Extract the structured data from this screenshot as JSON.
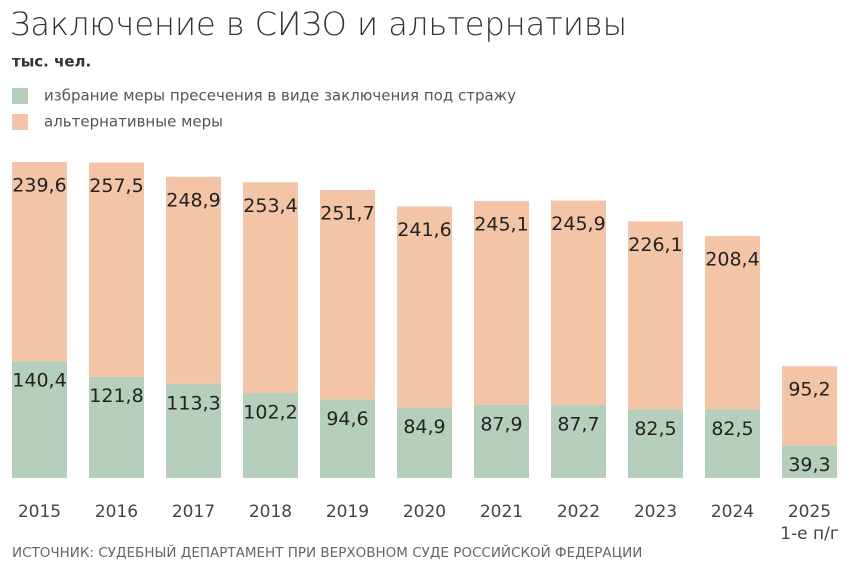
{
  "chart_data": {
    "type": "stacked_bar",
    "title": "Заключение в СИЗО и альтернативы",
    "subtitle": "тыс. чел.",
    "source": "ИСТОЧНИК: СУДЕБНЫЙ ДЕПАРТАМЕНТ ПРИ ВЕРХОВНОМ СУДЕ РОССИЙСКОЙ ФЕДЕРАЦИИ",
    "categories": [
      "2015",
      "2016",
      "2017",
      "2018",
      "2019",
      "2020",
      "2021",
      "2022",
      "2023",
      "2024",
      "2025\n1-е п/г"
    ],
    "series": [
      {
        "name": "избрание меры пресечения в виде заключения под стражу",
        "color": "#b5cfbc",
        "values": [
          140.4,
          121.8,
          113.3,
          102.2,
          94.6,
          84.9,
          87.9,
          87.7,
          82.5,
          82.5,
          39.3
        ],
        "value_labels": [
          "140,4",
          "121,8",
          "113,3",
          "102,2",
          "94,6",
          "84,9",
          "87,9",
          "87,7",
          "82,5",
          "82,5",
          "39,3"
        ]
      },
      {
        "name": "альтернативные меры",
        "color": "#f3c4a6",
        "values": [
          239.6,
          257.5,
          248.9,
          253.4,
          251.7,
          241.6,
          245.1,
          245.9,
          226.1,
          208.4,
          95.2
        ],
        "value_labels": [
          "239,6",
          "257,5",
          "248,9",
          "253,4",
          "251,7",
          "241,6",
          "245,1",
          "245,9",
          "226,1",
          "208,4",
          "95,2"
        ]
      }
    ]
  }
}
